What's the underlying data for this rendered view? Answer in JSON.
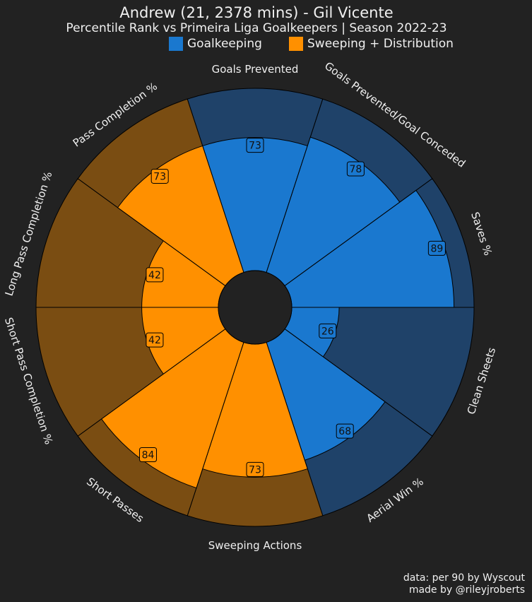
{
  "header": {
    "title": "Andrew (21, 2378 mins) - Gil Vicente",
    "subtitle": "Percentile Rank vs Primeira Liga Goalkeepers | Season 2022-23"
  },
  "legend": [
    {
      "label": "Goalkeeping",
      "color": "#1a78cf"
    },
    {
      "label": "Sweeping + Distribution",
      "color": "#ff9000"
    }
  ],
  "chart_data": {
    "type": "polar-bar",
    "title": "Andrew (21, 2378 mins) - Gil Vicente",
    "subtitle": "Percentile Rank vs Primeira Liga Goalkeepers | Season 2022-23",
    "range": [
      0,
      100
    ],
    "series": [
      {
        "name": "Goalkeeping",
        "color": "#1a78cf",
        "background": "#1f4269"
      },
      {
        "name": "Sweeping + Distribution",
        "color": "#ff9000",
        "background": "#7a4d12"
      }
    ],
    "params": [
      {
        "label": "Goals Prevented",
        "value": 73,
        "group": "Goalkeeping"
      },
      {
        "label": "Goals Prevented/Goal Conceded",
        "value": 78,
        "group": "Goalkeeping"
      },
      {
        "label": "Saves %",
        "value": 89,
        "group": "Goalkeeping"
      },
      {
        "label": "Clean Sheets",
        "value": 26,
        "group": "Goalkeeping"
      },
      {
        "label": "Aerial Win %",
        "value": 68,
        "group": "Goalkeeping"
      },
      {
        "label": "Sweeping Actions",
        "value": 73,
        "group": "Sweeping + Distribution"
      },
      {
        "label": "Short Passes",
        "value": 84,
        "group": "Sweeping + Distribution"
      },
      {
        "label": "Short Pass Completion %",
        "value": 42,
        "group": "Sweeping + Distribution"
      },
      {
        "label": "Long Pass Completion %",
        "value": 42,
        "group": "Sweeping + Distribution"
      },
      {
        "label": "Pass Completion %",
        "value": 73,
        "group": "Sweeping + Distribution"
      }
    ]
  },
  "footer": {
    "line1": "data: per 90 by Wyscout",
    "line2": "made by @rileyjroberts"
  }
}
